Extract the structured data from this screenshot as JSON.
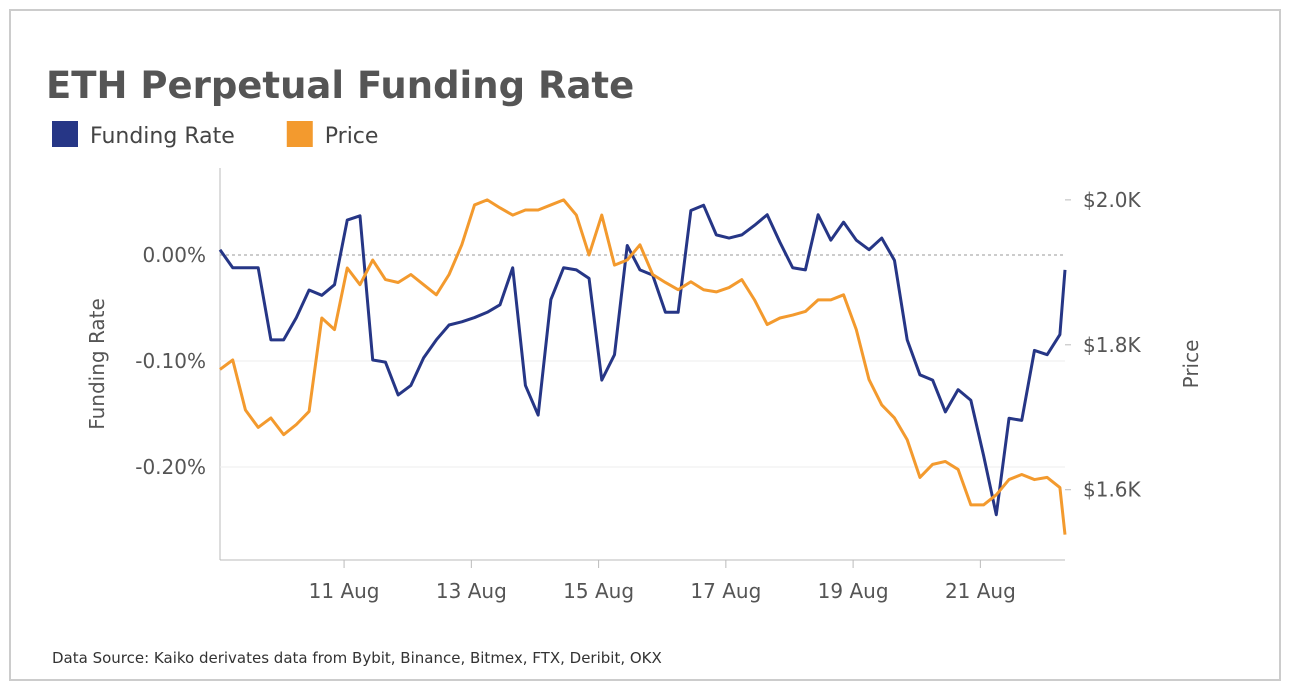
{
  "chart_data": {
    "type": "line",
    "title": "ETH Perpetual Funding Rate",
    "footnote": "Data Source: Kaiko derivates data from Bybit, Binance, Bitmex, FTX, Deribit, OKX",
    "ylabel": "Funding Rate",
    "y2label": "Price",
    "x": [
      9.05,
      9.25,
      9.45,
      9.65,
      9.85,
      10.05,
      10.25,
      10.45,
      10.65,
      10.85,
      11.05,
      11.25,
      11.45,
      11.65,
      11.85,
      12.05,
      12.25,
      12.45,
      12.65,
      12.85,
      13.05,
      13.25,
      13.45,
      13.65,
      13.85,
      14.05,
      14.25,
      14.45,
      14.65,
      14.85,
      15.05,
      15.25,
      15.45,
      15.65,
      15.85,
      16.05,
      16.25,
      16.45,
      16.65,
      16.85,
      17.05,
      17.25,
      17.45,
      17.65,
      17.85,
      18.05,
      18.25,
      18.45,
      18.65,
      18.85,
      19.05,
      19.25,
      19.45,
      19.65,
      19.85,
      20.05,
      20.25,
      20.45,
      20.65,
      20.85,
      21.05,
      21.25,
      21.45,
      21.65,
      21.85,
      22.05,
      22.25,
      22.33
    ],
    "xlim": [
      9.05,
      22.33
    ],
    "xticks": [
      {
        "value": 11,
        "label": "11 Aug"
      },
      {
        "value": 13,
        "label": "13 Aug"
      },
      {
        "value": 15,
        "label": "15 Aug"
      },
      {
        "value": 17,
        "label": "17 Aug"
      },
      {
        "value": 19,
        "label": "19 Aug"
      },
      {
        "value": 21,
        "label": "21 Aug"
      }
    ],
    "ylim": [
      -0.2877,
      0.0821
    ],
    "yticks": [
      {
        "value": 0,
        "label": "0.00%"
      },
      {
        "value": -0.1,
        "label": "-0.10%"
      },
      {
        "value": -0.2,
        "label": "-0.20%"
      }
    ],
    "y2lim": [
      1503,
      2044
    ],
    "y2ticks": [
      {
        "value": 2000,
        "label": "$2.0K"
      },
      {
        "value": 1800,
        "label": "$1.8K"
      },
      {
        "value": 1600,
        "label": "$1.6K"
      }
    ],
    "grid": true,
    "legend": "top-left",
    "series": [
      {
        "name": "Funding Rate",
        "color": "#263686",
        "axis": "y",
        "values": [
          0.005,
          -0.012,
          -0.012,
          -0.012,
          -0.08,
          -0.08,
          -0.059,
          -0.033,
          -0.038,
          -0.028,
          0.033,
          0.037,
          -0.099,
          -0.101,
          -0.132,
          -0.123,
          -0.097,
          -0.08,
          -0.066,
          -0.063,
          -0.059,
          -0.054,
          -0.047,
          -0.012,
          -0.123,
          -0.151,
          -0.042,
          -0.012,
          -0.014,
          -0.022,
          -0.118,
          -0.094,
          0.009,
          -0.014,
          -0.019,
          -0.054,
          -0.054,
          0.042,
          0.047,
          0.019,
          0.016,
          0.019,
          0.028,
          0.038,
          0.012,
          -0.012,
          -0.014,
          0.038,
          0.014,
          0.031,
          0.014,
          0.005,
          0.016,
          -0.005,
          -0.08,
          -0.113,
          -0.118,
          -0.148,
          -0.127,
          -0.137,
          -0.189,
          -0.245,
          -0.154,
          -0.156,
          -0.09,
          -0.094,
          -0.075,
          -0.014
        ]
      },
      {
        "name": "Price",
        "color": "#f39a2e",
        "axis": "y2",
        "values": [
          1766,
          1779,
          1710,
          1686,
          1699,
          1676,
          1690,
          1708,
          1837,
          1821,
          1906,
          1883,
          1917,
          1890,
          1886,
          1897,
          1883,
          1869,
          1897,
          1938,
          1993,
          2000,
          1989,
          1979,
          1986,
          1986,
          1993,
          2000,
          1979,
          1924,
          1979,
          1910,
          1917,
          1938,
          1897,
          1886,
          1876,
          1887,
          1876,
          1873,
          1879,
          1890,
          1862,
          1828,
          1837,
          1841,
          1846,
          1862,
          1862,
          1869,
          1821,
          1752,
          1717,
          1699,
          1669,
          1617,
          1635,
          1639,
          1628,
          1579,
          1579,
          1593,
          1614,
          1621,
          1614,
          1617,
          1603,
          1538
        ]
      }
    ]
  }
}
